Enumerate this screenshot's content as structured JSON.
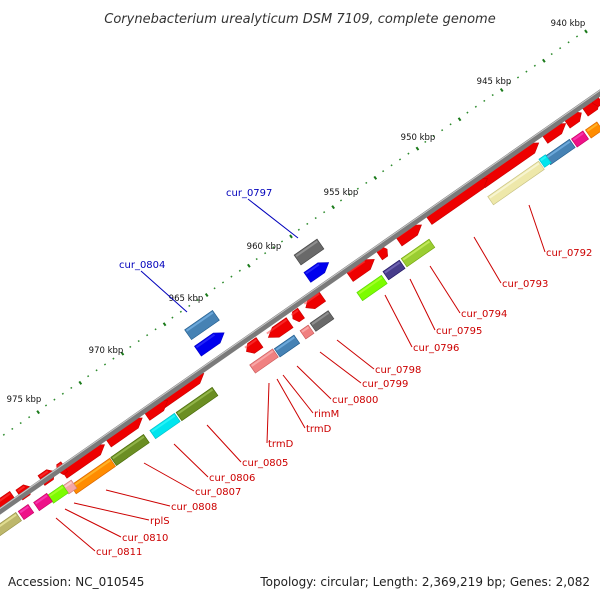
{
  "title": "Corynebacterium urealyticum DSM 7109, complete genome",
  "footer": {
    "accession": "Accession: NC_010545",
    "summary": "Topology: circular; Length: 2,369,219 bp; Genes: 2,082"
  },
  "colors": {
    "label_red": "#cc0000",
    "label_blue": "#0000bb",
    "backbone": "#8a8a8a",
    "tick_green": "#1a7a1a"
  },
  "kbp_marks": [
    {
      "label": "940 kbp",
      "t": 0.02
    },
    {
      "label": "945 kbp",
      "t": 0.16
    },
    {
      "label": "950 kbp",
      "t": 0.3
    },
    {
      "label": "955 kbp",
      "t": 0.44
    },
    {
      "label": "960 kbp",
      "t": 0.58
    },
    {
      "label": "965 kbp",
      "t": 0.72
    },
    {
      "label": "970 kbp",
      "t": 0.86
    },
    {
      "label": "975 kbp",
      "t": 1.0
    }
  ],
  "genes": [
    {
      "name": "cur_0792",
      "color": "blue_label_none"
    },
    {
      "name": "cur_0793"
    },
    {
      "name": "cur_0794"
    },
    {
      "name": "cur_0795"
    },
    {
      "name": "cur_0796"
    },
    {
      "name": "cur_0797"
    },
    {
      "name": "cur_0798"
    },
    {
      "name": "cur_0799"
    },
    {
      "name": "cur_0800"
    },
    {
      "name": "rimM"
    },
    {
      "name": "trmD"
    },
    {
      "name": "trmD"
    },
    {
      "name": "cur_0804"
    },
    {
      "name": "cur_0805"
    },
    {
      "name": "cur_0806"
    },
    {
      "name": "cur_0807"
    },
    {
      "name": "cur_0808"
    },
    {
      "name": "rplS"
    },
    {
      "name": "cur_0810"
    },
    {
      "name": "cur_0811"
    }
  ]
}
